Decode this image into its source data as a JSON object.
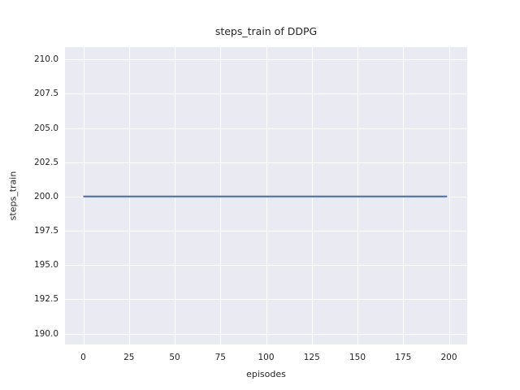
{
  "chart_data": {
    "type": "line",
    "title": "steps_train of DDPG",
    "xlabel": "episodes",
    "ylabel": "steps_train",
    "xlim": [
      -10,
      210
    ],
    "ylim": [
      189.2,
      210.9
    ],
    "x_ticks": [
      0,
      25,
      50,
      75,
      100,
      125,
      150,
      175,
      200
    ],
    "x_tick_labels": [
      "0",
      "25",
      "50",
      "75",
      "100",
      "125",
      "150",
      "175",
      "200"
    ],
    "y_ticks": [
      190.0,
      192.5,
      195.0,
      197.5,
      200.0,
      202.5,
      205.0,
      207.5,
      210.0
    ],
    "y_tick_labels": [
      "190.0",
      "192.5",
      "195.0",
      "197.5",
      "200.0",
      "202.5",
      "205.0",
      "207.5",
      "210.0"
    ],
    "grid": true,
    "legend": null,
    "series": [
      {
        "name": "steps_train",
        "color": "#4c72b0",
        "x": [
          0,
          199
        ],
        "y": [
          200,
          200
        ]
      }
    ],
    "style": {
      "plot_background": "#eaeaf2",
      "grid_color": "#ffffff",
      "text_color": "#262626",
      "figure_background": "#ffffff"
    }
  }
}
